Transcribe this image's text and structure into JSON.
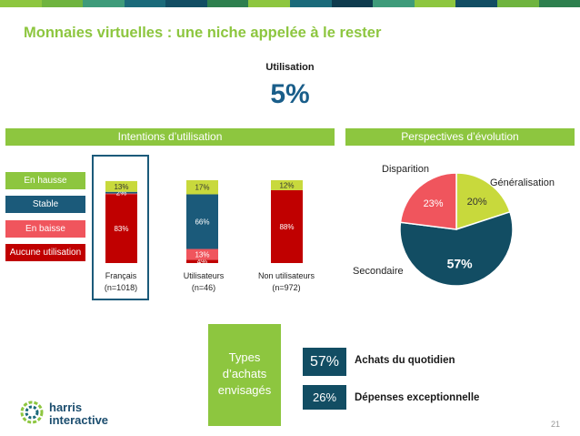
{
  "header": {
    "stripe_colors": [
      "#8dc63f",
      "#6fb43f",
      "#3e9b7a",
      "#1b6a7a",
      "#124d63",
      "#2d7f4e",
      "#8dc63f",
      "#1b6a7a",
      "#0e3b4e",
      "#3e9b7a",
      "#8dc63f",
      "#124d63",
      "#6fb43f",
      "#2d7f4e"
    ],
    "title": "Monnaies virtuelles : une niche appelée à le rester"
  },
  "utilisation": {
    "label": "Utilisation",
    "value": "5%"
  },
  "sections": {
    "intentions_title": "Intentions d’utilisation",
    "perspectives_title": "Perspectives d’évolution"
  },
  "legend": [
    {
      "label": "En hausse",
      "color": "#8dc63f"
    },
    {
      "label": "Stable",
      "color": "#1b5a7a"
    },
    {
      "label": "En baisse",
      "color": "#f0555d"
    },
    {
      "label": "Aucune utilisation",
      "color": "#c00000"
    }
  ],
  "chart_data": [
    {
      "type": "bar",
      "stacked": true,
      "categories": [
        "Français\n(n=1018)",
        "Utilisateurs\n(n=46)",
        "Non utilisateurs\n(n=972)"
      ],
      "series": [
        {
          "name": "Aucune utilisation",
          "color": "#c00000",
          "values": [
            83,
            4,
            88
          ],
          "labels": [
            "83%",
            "4%",
            "88%"
          ]
        },
        {
          "name": "En baisse",
          "color": "#f0555d",
          "values": [
            1,
            13,
            0
          ],
          "labels": [
            "",
            "13%",
            ""
          ]
        },
        {
          "name": "Stable",
          "color": "#1b5a7a",
          "values": [
            2,
            66,
            0
          ],
          "labels": [
            "2%",
            "66%",
            ""
          ]
        },
        {
          "name": "En hausse",
          "color": "#c8d93c",
          "values": [
            13,
            17,
            12
          ],
          "labels": [
            "13%",
            "17%",
            "12%"
          ]
        }
      ],
      "ylim": [
        0,
        100
      ]
    },
    {
      "type": "pie",
      "slices": [
        {
          "name": "Généralisation",
          "value": 20,
          "label": "20%",
          "color": "#c8d93c",
          "label_color": "#333333"
        },
        {
          "name": "Secondaire",
          "value": 57,
          "label": "57%",
          "color": "#124d63",
          "label_color": "#ffffff"
        },
        {
          "name": "Disparition",
          "value": 23,
          "label": "23%",
          "color": "#f0555d",
          "label_color": "#ffffff"
        }
      ]
    }
  ],
  "types": {
    "box_label": "Types\nd’achats\nenvisagés",
    "items": [
      {
        "pct": "57%",
        "label": "Achats du quotidien",
        "bg": "#124d63",
        "text_color": "#ffffff"
      },
      {
        "pct": "26%",
        "label": "Dépenses exceptionnelle",
        "bg": "#124d63",
        "text_color": "#ffffff"
      }
    ]
  },
  "logo": {
    "line1": "harris",
    "line2": "interactive"
  },
  "page_number": "21"
}
